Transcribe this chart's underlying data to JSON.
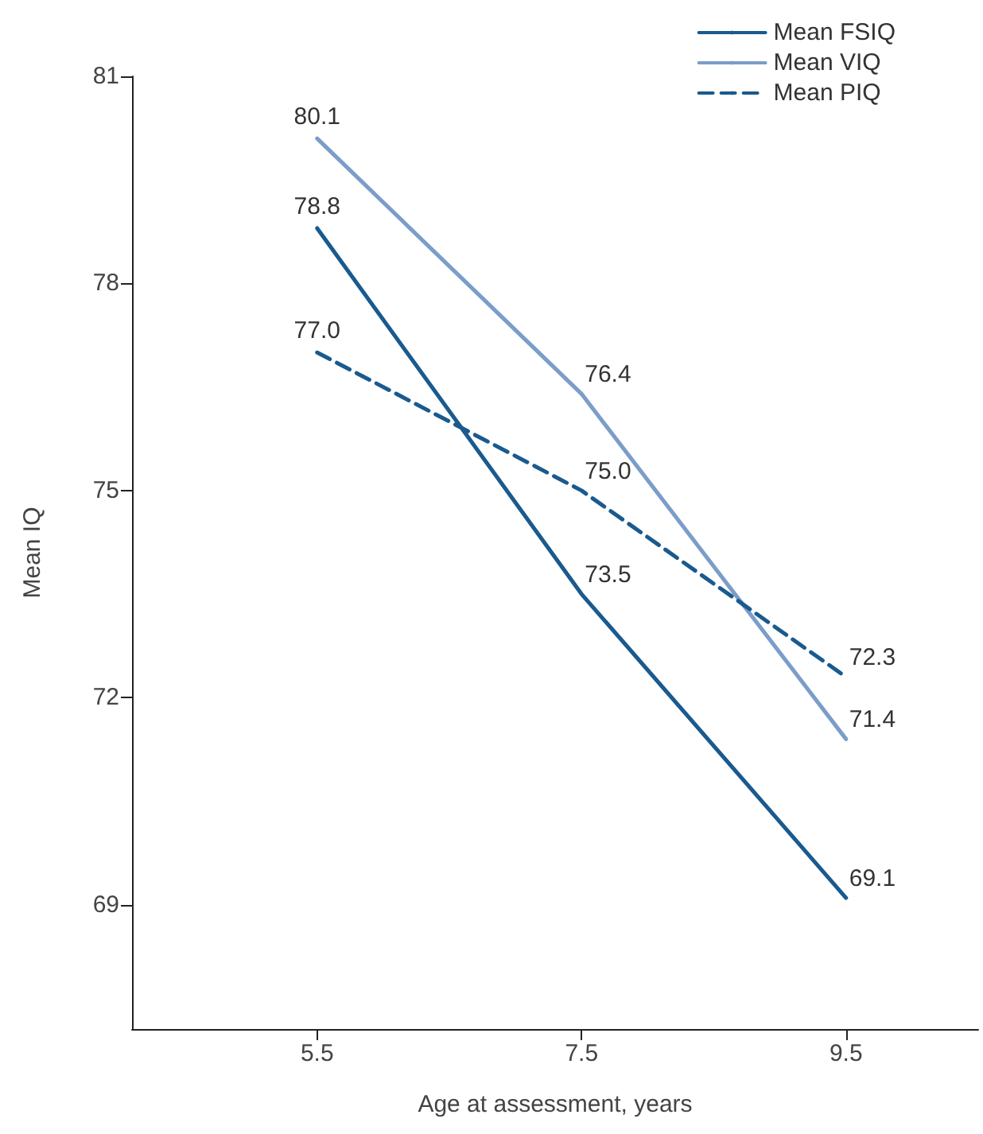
{
  "chart_data": {
    "type": "line",
    "xlabel": "Age at assessment, years",
    "ylabel": "Mean IQ",
    "x": [
      5.5,
      7.5,
      9.5
    ],
    "xlim": [
      4.1,
      10.5
    ],
    "xticks": [
      5.5,
      7.5,
      9.5
    ],
    "ylim": [
      67.2,
      81
    ],
    "yticks": [
      69,
      72,
      75,
      78,
      81
    ],
    "series": [
      {
        "name": "Mean FSIQ",
        "color": "#1a5a8e",
        "values": [
          78.8,
          73.5,
          69.1
        ],
        "value_labels": [
          "78.8",
          "73.5",
          "69.1"
        ],
        "line_style": "solid"
      },
      {
        "name": "Mean VIQ",
        "color": "#7b9dc9",
        "values": [
          80.1,
          76.4,
          71.4
        ],
        "value_labels": [
          "80.1",
          "76.4",
          "71.4"
        ],
        "line_style": "solid"
      },
      {
        "name": "Mean PIQ",
        "color": "#1a5a8e",
        "values": [
          77.0,
          75.0,
          72.3
        ],
        "value_labels": [
          "77.0",
          "75.0",
          "72.3"
        ],
        "line_style": "dashed"
      }
    ],
    "legend": "top right",
    "grid": false,
    "marker": "none"
  }
}
